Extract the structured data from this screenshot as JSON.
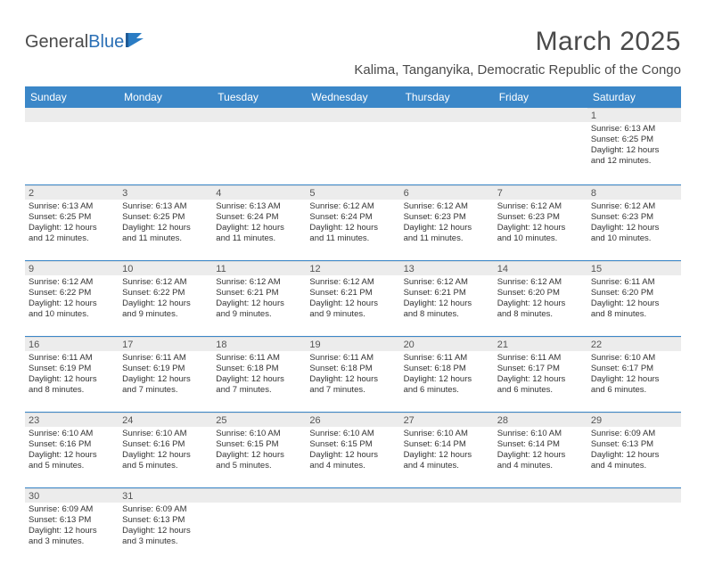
{
  "brand": {
    "part1": "General",
    "part2": "Blue"
  },
  "title": "March 2025",
  "location": "Kalima, Tanganyika, Democratic Republic of the Congo",
  "colors": {
    "header_bg": "#3b87c8",
    "header_text": "#ffffff",
    "row_border": "#3b87c8",
    "daynum_bg": "#ececec",
    "body_text": "#333333"
  },
  "daynames": [
    "Sunday",
    "Monday",
    "Tuesday",
    "Wednesday",
    "Thursday",
    "Friday",
    "Saturday"
  ],
  "weeks": [
    [
      null,
      null,
      null,
      null,
      null,
      null,
      {
        "n": "1",
        "sr": "Sunrise: 6:13 AM",
        "ss": "Sunset: 6:25 PM",
        "d1": "Daylight: 12 hours",
        "d2": "and 12 minutes."
      }
    ],
    [
      {
        "n": "2",
        "sr": "Sunrise: 6:13 AM",
        "ss": "Sunset: 6:25 PM",
        "d1": "Daylight: 12 hours",
        "d2": "and 12 minutes."
      },
      {
        "n": "3",
        "sr": "Sunrise: 6:13 AM",
        "ss": "Sunset: 6:25 PM",
        "d1": "Daylight: 12 hours",
        "d2": "and 11 minutes."
      },
      {
        "n": "4",
        "sr": "Sunrise: 6:13 AM",
        "ss": "Sunset: 6:24 PM",
        "d1": "Daylight: 12 hours",
        "d2": "and 11 minutes."
      },
      {
        "n": "5",
        "sr": "Sunrise: 6:12 AM",
        "ss": "Sunset: 6:24 PM",
        "d1": "Daylight: 12 hours",
        "d2": "and 11 minutes."
      },
      {
        "n": "6",
        "sr": "Sunrise: 6:12 AM",
        "ss": "Sunset: 6:23 PM",
        "d1": "Daylight: 12 hours",
        "d2": "and 11 minutes."
      },
      {
        "n": "7",
        "sr": "Sunrise: 6:12 AM",
        "ss": "Sunset: 6:23 PM",
        "d1": "Daylight: 12 hours",
        "d2": "and 10 minutes."
      },
      {
        "n": "8",
        "sr": "Sunrise: 6:12 AM",
        "ss": "Sunset: 6:23 PM",
        "d1": "Daylight: 12 hours",
        "d2": "and 10 minutes."
      }
    ],
    [
      {
        "n": "9",
        "sr": "Sunrise: 6:12 AM",
        "ss": "Sunset: 6:22 PM",
        "d1": "Daylight: 12 hours",
        "d2": "and 10 minutes."
      },
      {
        "n": "10",
        "sr": "Sunrise: 6:12 AM",
        "ss": "Sunset: 6:22 PM",
        "d1": "Daylight: 12 hours",
        "d2": "and 9 minutes."
      },
      {
        "n": "11",
        "sr": "Sunrise: 6:12 AM",
        "ss": "Sunset: 6:21 PM",
        "d1": "Daylight: 12 hours",
        "d2": "and 9 minutes."
      },
      {
        "n": "12",
        "sr": "Sunrise: 6:12 AM",
        "ss": "Sunset: 6:21 PM",
        "d1": "Daylight: 12 hours",
        "d2": "and 9 minutes."
      },
      {
        "n": "13",
        "sr": "Sunrise: 6:12 AM",
        "ss": "Sunset: 6:21 PM",
        "d1": "Daylight: 12 hours",
        "d2": "and 8 minutes."
      },
      {
        "n": "14",
        "sr": "Sunrise: 6:12 AM",
        "ss": "Sunset: 6:20 PM",
        "d1": "Daylight: 12 hours",
        "d2": "and 8 minutes."
      },
      {
        "n": "15",
        "sr": "Sunrise: 6:11 AM",
        "ss": "Sunset: 6:20 PM",
        "d1": "Daylight: 12 hours",
        "d2": "and 8 minutes."
      }
    ],
    [
      {
        "n": "16",
        "sr": "Sunrise: 6:11 AM",
        "ss": "Sunset: 6:19 PM",
        "d1": "Daylight: 12 hours",
        "d2": "and 8 minutes."
      },
      {
        "n": "17",
        "sr": "Sunrise: 6:11 AM",
        "ss": "Sunset: 6:19 PM",
        "d1": "Daylight: 12 hours",
        "d2": "and 7 minutes."
      },
      {
        "n": "18",
        "sr": "Sunrise: 6:11 AM",
        "ss": "Sunset: 6:18 PM",
        "d1": "Daylight: 12 hours",
        "d2": "and 7 minutes."
      },
      {
        "n": "19",
        "sr": "Sunrise: 6:11 AM",
        "ss": "Sunset: 6:18 PM",
        "d1": "Daylight: 12 hours",
        "d2": "and 7 minutes."
      },
      {
        "n": "20",
        "sr": "Sunrise: 6:11 AM",
        "ss": "Sunset: 6:18 PM",
        "d1": "Daylight: 12 hours",
        "d2": "and 6 minutes."
      },
      {
        "n": "21",
        "sr": "Sunrise: 6:11 AM",
        "ss": "Sunset: 6:17 PM",
        "d1": "Daylight: 12 hours",
        "d2": "and 6 minutes."
      },
      {
        "n": "22",
        "sr": "Sunrise: 6:10 AM",
        "ss": "Sunset: 6:17 PM",
        "d1": "Daylight: 12 hours",
        "d2": "and 6 minutes."
      }
    ],
    [
      {
        "n": "23",
        "sr": "Sunrise: 6:10 AM",
        "ss": "Sunset: 6:16 PM",
        "d1": "Daylight: 12 hours",
        "d2": "and 5 minutes."
      },
      {
        "n": "24",
        "sr": "Sunrise: 6:10 AM",
        "ss": "Sunset: 6:16 PM",
        "d1": "Daylight: 12 hours",
        "d2": "and 5 minutes."
      },
      {
        "n": "25",
        "sr": "Sunrise: 6:10 AM",
        "ss": "Sunset: 6:15 PM",
        "d1": "Daylight: 12 hours",
        "d2": "and 5 minutes."
      },
      {
        "n": "26",
        "sr": "Sunrise: 6:10 AM",
        "ss": "Sunset: 6:15 PM",
        "d1": "Daylight: 12 hours",
        "d2": "and 4 minutes."
      },
      {
        "n": "27",
        "sr": "Sunrise: 6:10 AM",
        "ss": "Sunset: 6:14 PM",
        "d1": "Daylight: 12 hours",
        "d2": "and 4 minutes."
      },
      {
        "n": "28",
        "sr": "Sunrise: 6:10 AM",
        "ss": "Sunset: 6:14 PM",
        "d1": "Daylight: 12 hours",
        "d2": "and 4 minutes."
      },
      {
        "n": "29",
        "sr": "Sunrise: 6:09 AM",
        "ss": "Sunset: 6:13 PM",
        "d1": "Daylight: 12 hours",
        "d2": "and 4 minutes."
      }
    ],
    [
      {
        "n": "30",
        "sr": "Sunrise: 6:09 AM",
        "ss": "Sunset: 6:13 PM",
        "d1": "Daylight: 12 hours",
        "d2": "and 3 minutes."
      },
      {
        "n": "31",
        "sr": "Sunrise: 6:09 AM",
        "ss": "Sunset: 6:13 PM",
        "d1": "Daylight: 12 hours",
        "d2": "and 3 minutes."
      },
      null,
      null,
      null,
      null,
      null
    ]
  ]
}
